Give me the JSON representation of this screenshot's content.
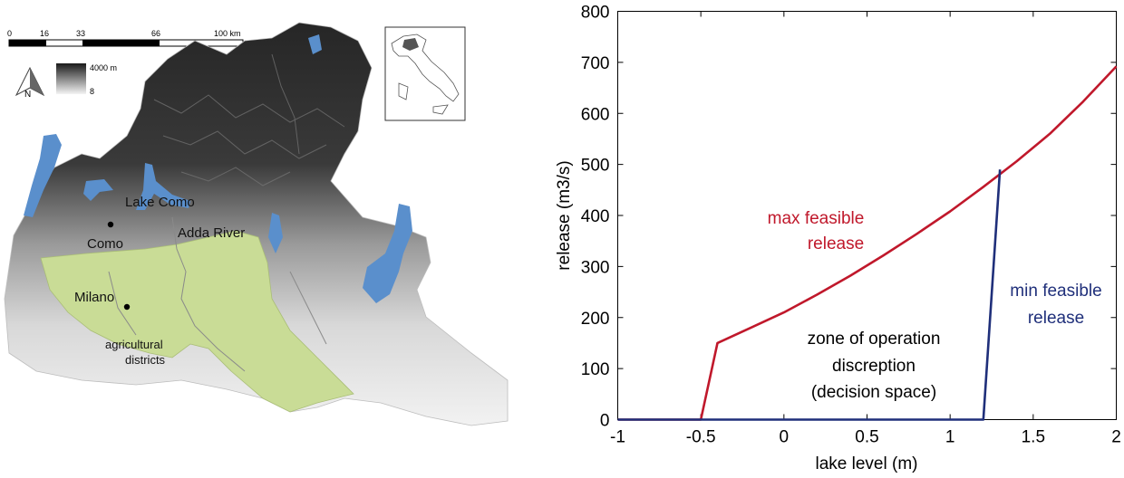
{
  "map": {
    "scale_ticks": [
      "0",
      "16",
      "33",
      "66",
      "100 km"
    ],
    "north_label": "N",
    "elevation_max": "4000 m",
    "elevation_min": "8",
    "labels": {
      "lake": "Lake Como",
      "city_como": "Como",
      "river": "Adda River",
      "city_milano": "Milano",
      "districts_line1": "agricultural",
      "districts_line2": "districts"
    },
    "colors": {
      "water": "#5a8fcc",
      "agriculture": "#c9dc96",
      "mountain_dark": "#1f1f1f",
      "lowland": "#ececec"
    }
  },
  "chart_data": {
    "type": "line",
    "xlabel": "lake level (m)",
    "ylabel": "release (m3/s)",
    "xlim": [
      -1,
      2
    ],
    "ylim": [
      0,
      800
    ],
    "xticks": [
      -1,
      -0.5,
      0,
      0.5,
      1,
      1.5,
      2
    ],
    "xtick_labels": [
      "-1",
      "-0.5",
      "0",
      "0.5",
      "1",
      "1.5",
      "2"
    ],
    "yticks": [
      0,
      100,
      200,
      300,
      400,
      500,
      600,
      700,
      800
    ],
    "ytick_labels": [
      "0",
      "100",
      "200",
      "300",
      "400",
      "500",
      "600",
      "700",
      "800"
    ],
    "grid": false,
    "series": [
      {
        "color": "#c0182b",
        "x": [
          -1,
          -0.5,
          -0.4,
          -0.2,
          0,
          0.2,
          0.4,
          0.6,
          0.8,
          1.0,
          1.2,
          1.4,
          1.6,
          1.8,
          2.0
        ],
        "y": [
          0,
          0,
          150,
          180,
          210,
          245,
          282,
          322,
          364,
          408,
          456,
          506,
          560,
          623,
          692
        ]
      },
      {
        "color": "#1f2f7a",
        "x": [
          -1,
          1.2,
          1.3
        ],
        "y": [
          0,
          0,
          490
        ]
      }
    ],
    "annotations": {
      "max_line1": "max feasible",
      "max_line2": "release",
      "min_line1": "min feasible",
      "min_line2": "release",
      "zone_line1": "zone of operation",
      "zone_line2": "discreption",
      "zone_line3": "(decision space)"
    }
  }
}
